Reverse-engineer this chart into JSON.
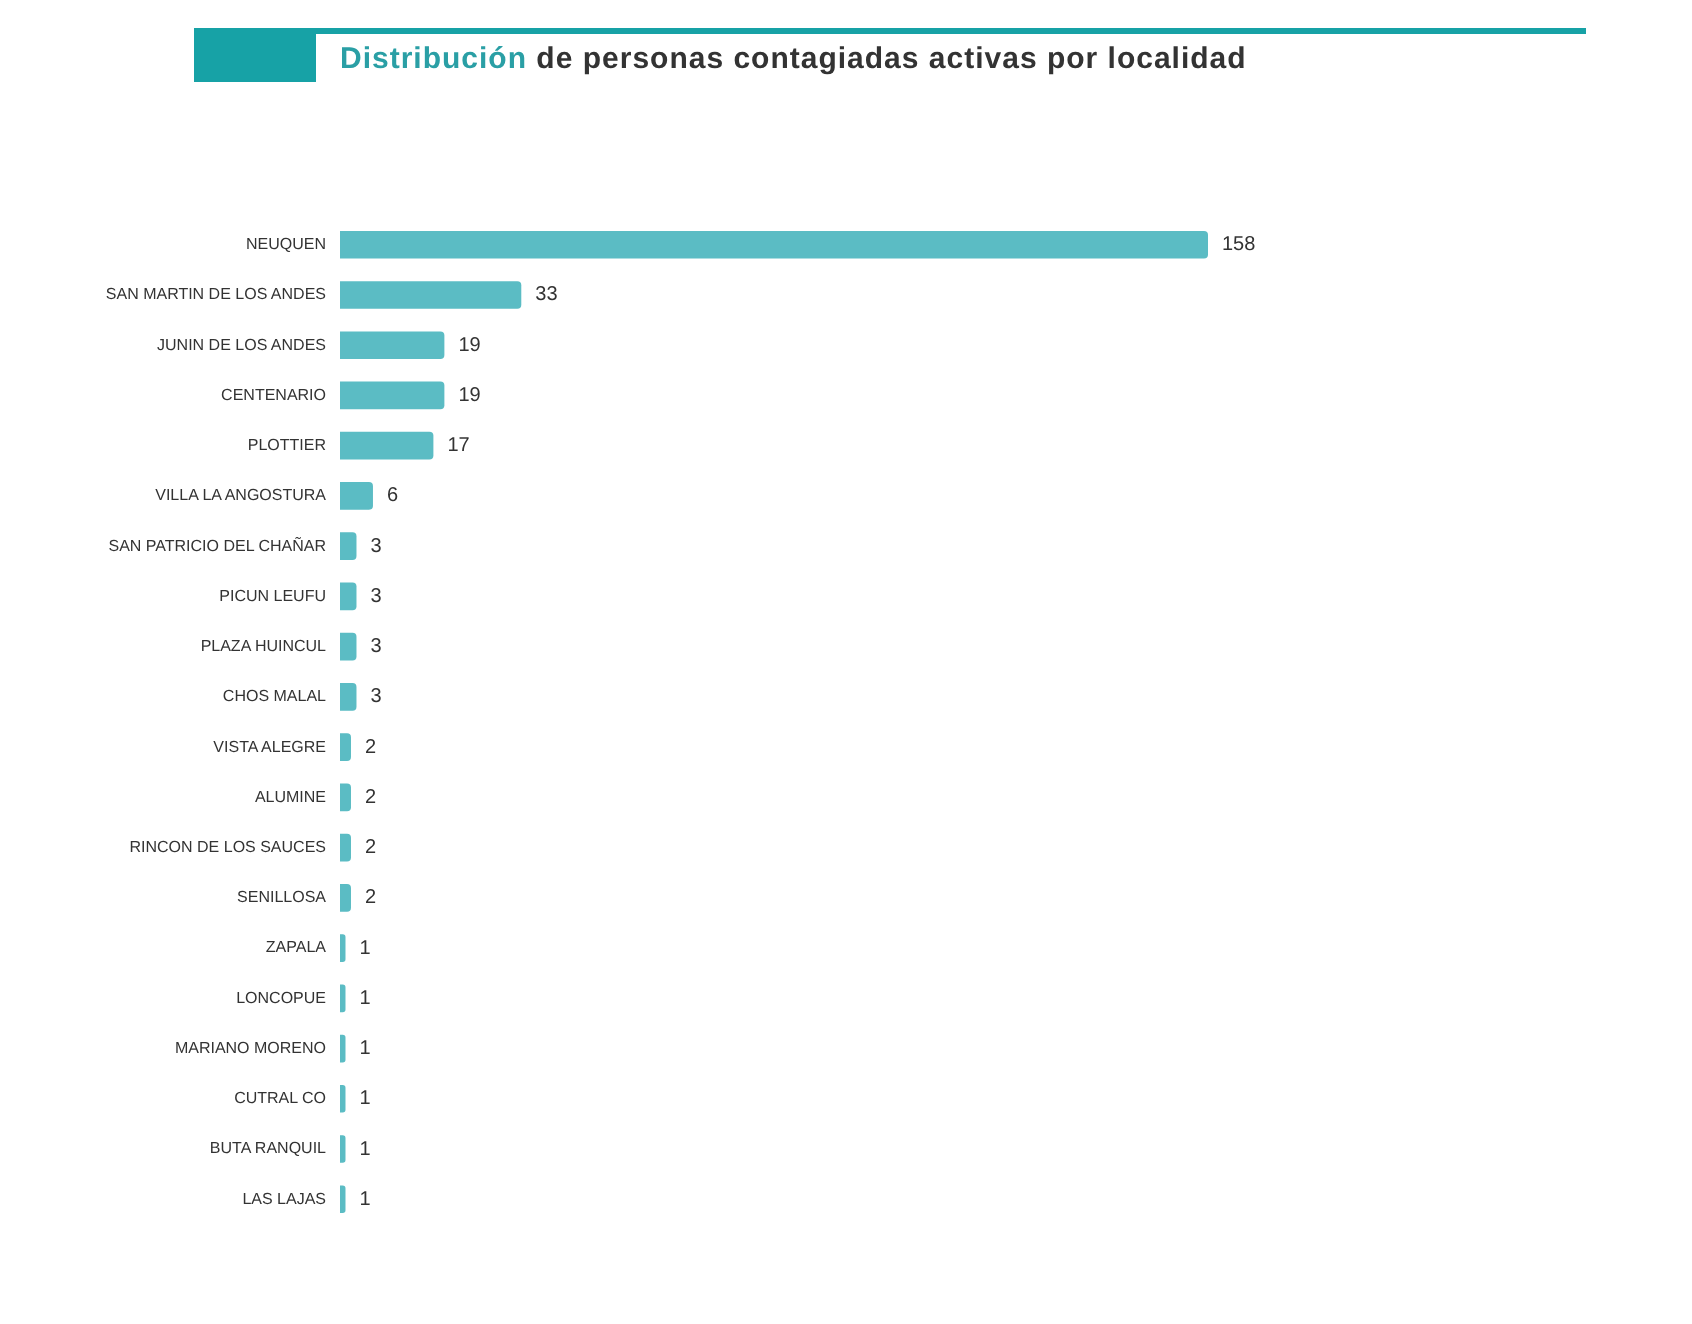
{
  "chart_data": {
    "type": "bar",
    "orientation": "horizontal",
    "title": "Distribución de personas contagiadas activas por localidad",
    "categories": [
      "NEUQUEN",
      "SAN MARTIN DE LOS ANDES",
      "JUNIN DE LOS ANDES",
      "CENTENARIO",
      "PLOTTIER",
      "VILLA LA ANGOSTURA",
      "SAN PATRICIO DEL CHAÑAR",
      "PICUN LEUFU",
      "PLAZA HUINCUL",
      "CHOS MALAL",
      "VISTA ALEGRE",
      "ALUMINE",
      "RINCON DE LOS SAUCES",
      "SENILLOSA",
      "ZAPALA",
      "LONCOPUE",
      "MARIANO MORENO",
      "CUTRAL CO",
      "BUTA RANQUIL",
      "LAS LAJAS"
    ],
    "values": [
      158,
      33,
      19,
      19,
      17,
      6,
      3,
      3,
      3,
      3,
      2,
      2,
      2,
      2,
      1,
      1,
      1,
      1,
      1,
      1
    ],
    "color": "#5bbcc4",
    "data_labels": true,
    "legend": false,
    "tick_labels": "y"
  }
}
